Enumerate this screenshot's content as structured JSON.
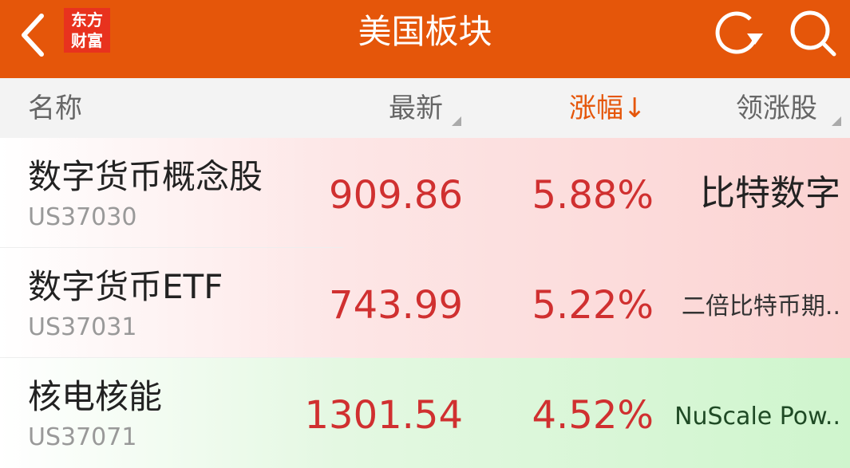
{
  "header": {
    "title": "美国板块",
    "logo_text": "东方财富",
    "back_icon": "chevron-left-icon",
    "refresh_icon": "refresh-icon",
    "search_icon": "search-icon",
    "bg_color": "#e5560a"
  },
  "columns": {
    "name": "名称",
    "latest": "最新",
    "change": "涨幅↓",
    "leader": "领涨股"
  },
  "rows": [
    {
      "name": "数字货币概念股",
      "code": "US37030",
      "price": "909.86",
      "change": "5.88%",
      "leader": "比特数字"
    },
    {
      "name": "数字货币ETF",
      "code": "US37031",
      "price": "743.99",
      "change": "5.22%",
      "leader": "二倍比特币期.."
    },
    {
      "name": "核电核能",
      "code": "US37071",
      "price": "1301.54",
      "change": "4.52%",
      "leader": "NuScale Pow.."
    }
  ],
  "colors": {
    "up": "#d03030",
    "accent": "#e5560a"
  }
}
